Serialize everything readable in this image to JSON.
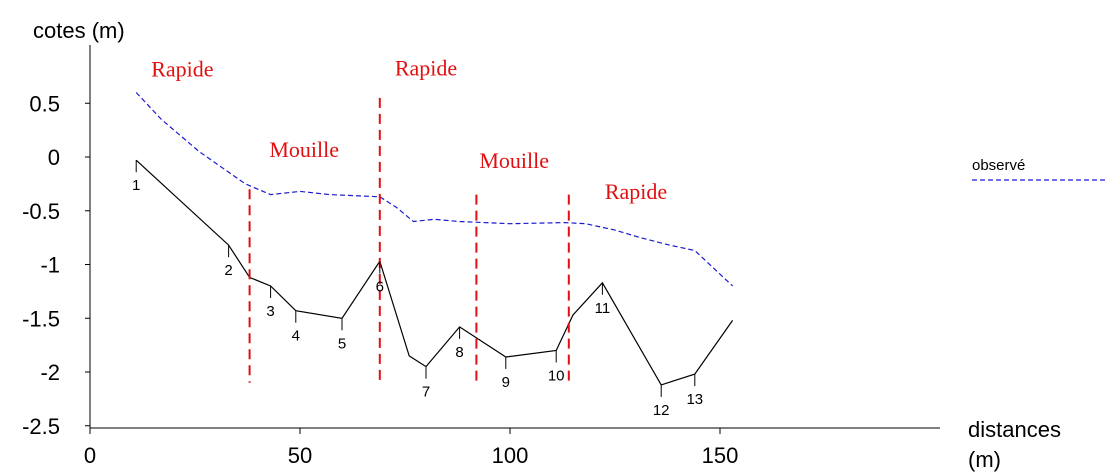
{
  "chart_data": {
    "type": "line",
    "ylabel": "cotes (m)",
    "xlabel": "distances",
    "xlabel_unit": "(m)",
    "xlim": [
      0,
      200
    ],
    "ylim": [
      -2.5,
      1.0
    ],
    "x_ticks": [
      "0",
      "50",
      "100",
      "150"
    ],
    "x_tick_values": [
      0,
      50,
      100,
      150
    ],
    "y_ticks": [
      "0.5",
      "0",
      "-0.5",
      "-1",
      "-1.5",
      "-2",
      "-2.5"
    ],
    "y_tick_values": [
      0.5,
      0,
      -0.5,
      -1,
      -1.5,
      -2,
      -2.5
    ],
    "legend": {
      "position": "right",
      "entries": [
        {
          "label": "observé",
          "style": "dashed",
          "color": "#1a1ad0"
        }
      ]
    },
    "series": [
      {
        "name": "observé",
        "style": "dashed",
        "color": "#1a1ad0",
        "x": [
          11,
          17,
          26,
          37,
          43,
          50,
          57,
          69,
          73,
          77,
          82,
          88,
          100,
          113,
          118,
          125,
          131,
          138,
          144,
          153
        ],
        "y": [
          0.6,
          0.35,
          0.05,
          -0.25,
          -0.35,
          -0.32,
          -0.35,
          -0.37,
          -0.47,
          -0.6,
          -0.58,
          -0.6,
          -0.62,
          -0.61,
          -0.62,
          -0.68,
          -0.75,
          -0.82,
          -0.87,
          -1.2
        ]
      },
      {
        "name": "",
        "style": "solid",
        "color": "#000000",
        "x": [
          11,
          33,
          38,
          43,
          49,
          60,
          69,
          76,
          80,
          88,
          99,
          111,
          115,
          122,
          136,
          144,
          153
        ],
        "y": [
          -0.03,
          -0.82,
          -1.12,
          -1.2,
          -1.43,
          -1.5,
          -0.97,
          -1.85,
          -1.95,
          -1.58,
          -1.86,
          -1.8,
          -1.47,
          -1.17,
          -2.12,
          -2.02,
          -1.52
        ]
      }
    ],
    "profile_points": [
      {
        "label": "1",
        "x": 11,
        "y": -0.03
      },
      {
        "label": "2",
        "x": 33,
        "y": -0.82
      },
      {
        "label": "3",
        "x": 43,
        "y": -1.2
      },
      {
        "label": "4",
        "x": 49,
        "y": -1.43
      },
      {
        "label": "5",
        "x": 60,
        "y": -1.5
      },
      {
        "label": "6",
        "x": 69,
        "y": -0.97
      },
      {
        "label": "7",
        "x": 80,
        "y": -1.95
      },
      {
        "label": "8",
        "x": 88,
        "y": -1.58
      },
      {
        "label": "9",
        "x": 99,
        "y": -1.86
      },
      {
        "label": "10",
        "x": 111,
        "y": -1.8
      },
      {
        "label": "11",
        "x": 122,
        "y": -1.17
      },
      {
        "label": "12",
        "x": 136,
        "y": -2.12
      },
      {
        "label": "13",
        "x": 144,
        "y": -2.02
      }
    ],
    "zone_boundaries": [
      {
        "x": 38,
        "y_top": -0.3,
        "y_bottom": -2.1
      },
      {
        "x": 69,
        "y_top": 0.55,
        "y_bottom": -2.1
      },
      {
        "x": 92,
        "y_top": -0.35,
        "y_bottom": -2.1
      },
      {
        "x": 114,
        "y_top": -0.35,
        "y_bottom": -2.1
      }
    ],
    "zones": [
      {
        "label": "Rapide",
        "x": 22,
        "y": 0.75
      },
      {
        "label": "Mouille",
        "x": 51,
        "y": 0.0
      },
      {
        "label": "Rapide",
        "x": 80,
        "y": 0.76
      },
      {
        "label": "Mouille",
        "x": 101,
        "y": -0.1
      },
      {
        "label": "Rapide",
        "x": 130,
        "y": -0.39
      }
    ],
    "colors": {
      "zone": "#e01010",
      "observed": "#1a1ad0",
      "profile": "#000000"
    }
  }
}
